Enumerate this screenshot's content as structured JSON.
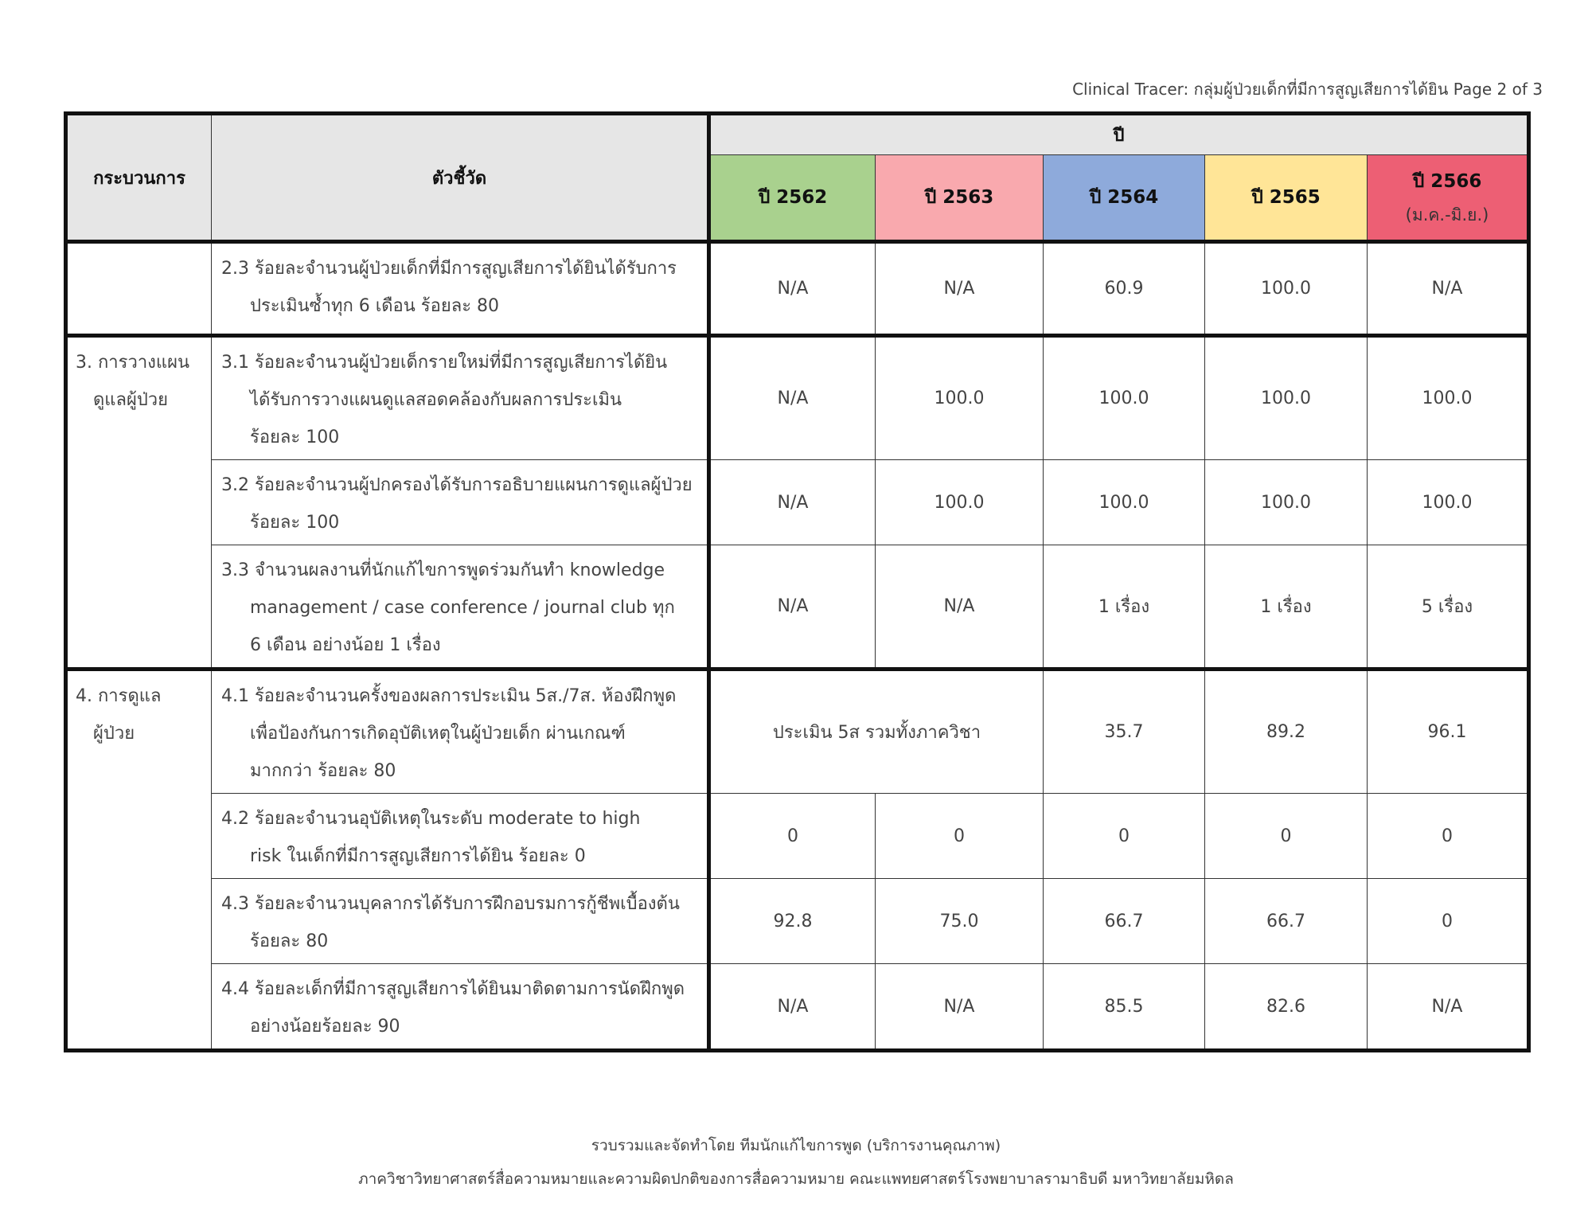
{
  "header": "Clinical Tracer: กลุ่มผู้ป่วยเด็กที่มีการสูญเสียการได้ยิน Page 2 of 3",
  "table": {
    "col_process": "กระบวนการ",
    "col_indicator": "ตัวชี้วัด",
    "col_year": "ปี",
    "years": [
      {
        "label": "ปี 2562",
        "color": "#a9d18e"
      },
      {
        "label": "ปี 2563",
        "color": "#f9a9ae"
      },
      {
        "label": "ปี 2564",
        "color": "#8eaadb"
      },
      {
        "label": "ปี 2565",
        "color": "#ffe597"
      },
      {
        "label": "ปี 2566",
        "sub": "(ม.ค.-มิ.ย.)",
        "color": "#ed5f74"
      }
    ],
    "rows": [
      {
        "process": "",
        "l1": "2.3 ร้อยละจำนวนผู้ป่วยเด็กที่มีการสูญเสียการได้ยินได้รับการ",
        "l2": "ประเมินซ้ำทุก 6 เดือน ร้อยละ 80",
        "values": [
          "N/A",
          "N/A",
          "60.9",
          "100.0",
          "N/A"
        ]
      },
      {
        "process": "3. การวางแผน",
        "process2": "ดูแลผู้ป่วย",
        "l1": "3.1 ร้อยละจำนวนผู้ป่วยเด็กรายใหม่ที่มีการสูญเสียการได้ยิน",
        "l2": "ได้รับการวางแผนดูแลสอดคล้องกับผลการประเมิน",
        "l3": "ร้อยละ 100",
        "values": [
          "N/A",
          "100.0",
          "100.0",
          "100.0",
          "100.0"
        ]
      },
      {
        "l1": "3.2 ร้อยละจำนวนผู้ปกครองได้รับการอธิบายแผนการดูแลผู้ป่วย",
        "l2": "ร้อยละ 100",
        "values": [
          "N/A",
          "100.0",
          "100.0",
          "100.0",
          "100.0"
        ]
      },
      {
        "l1": "3.3 จำนวนผลงานที่นักแก้ไขการพูดร่วมกันทำ knowledge",
        "l2": "management / case conference / journal club ทุก",
        "l3": "6 เดือน อย่างน้อย 1 เรื่อง",
        "values": [
          "N/A",
          "N/A",
          "1 เรื่อง",
          "1 เรื่อง",
          "5 เรื่อง"
        ]
      },
      {
        "process": "4. การดูแล",
        "process2": "ผู้ป่วย",
        "l1": "4.1  ร้อยละจำนวนครั้งของผลการประเมิน 5ส./7ส. ห้องฝึกพูด",
        "l2": "เพื่อป้องกันการเกิดอุบัติเหตุในผู้ป่วยเด็ก ผ่านเกณฑ์",
        "l3": "มากกว่า ร้อยละ 80",
        "merged": "ประเมิน 5ส รวมทั้งภาควิชา",
        "values": [
          "35.7",
          "89.2",
          "96.1"
        ]
      },
      {
        "l1": "4.2 ร้อยละจำนวนอุบัติเหตุในระดับ moderate to high",
        "l2": "risk ในเด็กที่มีการสูญเสียการได้ยิน ร้อยละ 0",
        "values": [
          "0",
          "0",
          "0",
          "0",
          "0"
        ]
      },
      {
        "l1": "4.3 ร้อยละจำนวนบุคลากรได้รับการฝึกอบรมการกู้ชีพเบื้องต้น",
        "l2": "ร้อยละ 80",
        "values": [
          "92.8",
          "75.0",
          "66.7",
          "66.7",
          "0"
        ]
      },
      {
        "l1": "4.4 ร้อยละเด็กที่มีการสูญเสียการได้ยินมาติดตามการนัดฝึกพูด",
        "l2": "อย่างน้อยร้อยละ 90",
        "values": [
          "N/A",
          "N/A",
          "85.5",
          "82.6",
          "N/A"
        ]
      }
    ]
  },
  "footer": {
    "line1": "รวบรวมและจัดทำโดย ทีมนักแก้ไขการพูด (บริการงานคุณภาพ)",
    "line2": "ภาควิชาวิทยาศาสตร์สื่อความหมายและความผิดปกติของการสื่อความหมาย คณะแพทยศาสตร์โรงพยาบาลรามาธิบดี มหาวิทยาลัยมหิดล"
  }
}
